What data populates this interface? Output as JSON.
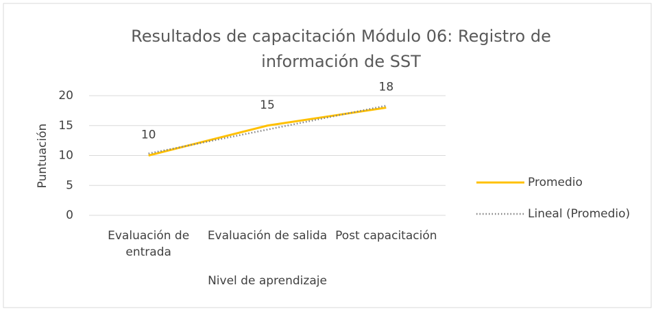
{
  "chart_data": {
    "type": "line",
    "title": "Resultados de capacitación Módulo 06:  Registro de información de SST",
    "x_label": "Nivel de aprendizaje",
    "y_label": "Puntuación",
    "categories": [
      "Evaluación de entrada",
      "Evaluación de salida",
      "Post capacitación"
    ],
    "series": [
      {
        "name": "Promedio",
        "color": "#ffc000",
        "values": [
          10,
          15,
          18
        ],
        "data_labels": true
      },
      {
        "name": "Lineal (Promedio)",
        "color": "#7f7f7f",
        "values": [
          10.33,
          14.33,
          18.33
        ],
        "dash": "dotted"
      }
    ],
    "ylim": [
      0,
      20
    ],
    "yticks": [
      0,
      5,
      10,
      15,
      20
    ],
    "grid": true,
    "legend": "right"
  }
}
